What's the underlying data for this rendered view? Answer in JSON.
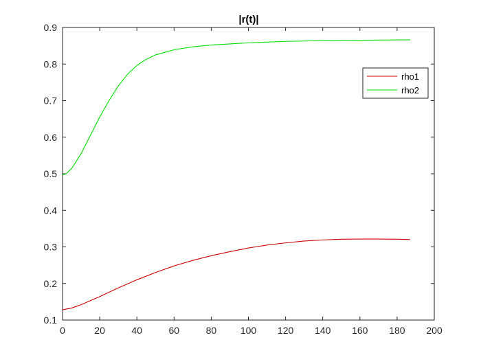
{
  "chart_data": {
    "type": "line",
    "title": "|r(t)|",
    "xlabel": "",
    "ylabel": "",
    "xlim": [
      0,
      200
    ],
    "ylim": [
      0.1,
      0.9
    ],
    "xticks": [
      0,
      20,
      40,
      60,
      80,
      100,
      120,
      140,
      160,
      180,
      200
    ],
    "yticks": [
      0.1,
      0.2,
      0.3,
      0.4,
      0.5,
      0.6,
      0.7,
      0.8,
      0.9
    ],
    "xtick_labels": [
      "0",
      "20",
      "40",
      "60",
      "80",
      "100",
      "120",
      "140",
      "160",
      "180",
      "200"
    ],
    "ytick_labels": [
      "0.1",
      "0.2",
      "0.3",
      "0.4",
      "0.5",
      "0.6",
      "0.7",
      "0.8",
      "0.9"
    ],
    "grid": false,
    "legend_position": "top-right",
    "series": [
      {
        "name": "rho1",
        "color": "#cc0000",
        "x": [
          0,
          5,
          10,
          15,
          20,
          30,
          40,
          50,
          60,
          70,
          80,
          90,
          100,
          110,
          120,
          130,
          140,
          150,
          160,
          170,
          180,
          187
        ],
        "y": [
          0.128,
          0.133,
          0.142,
          0.153,
          0.164,
          0.188,
          0.21,
          0.23,
          0.248,
          0.263,
          0.276,
          0.287,
          0.297,
          0.305,
          0.311,
          0.316,
          0.319,
          0.321,
          0.3215,
          0.3215,
          0.321,
          0.32
        ]
      },
      {
        "name": "rho2",
        "color": "#00dd00",
        "x": [
          0,
          2,
          5,
          10,
          15,
          20,
          25,
          30,
          35,
          40,
          45,
          50,
          55,
          60,
          70,
          80,
          90,
          100,
          120,
          140,
          160,
          180,
          187
        ],
        "y": [
          0.497,
          0.5,
          0.515,
          0.555,
          0.605,
          0.655,
          0.7,
          0.74,
          0.772,
          0.796,
          0.813,
          0.825,
          0.832,
          0.839,
          0.847,
          0.852,
          0.855,
          0.858,
          0.862,
          0.864,
          0.865,
          0.866,
          0.866
        ]
      }
    ]
  }
}
